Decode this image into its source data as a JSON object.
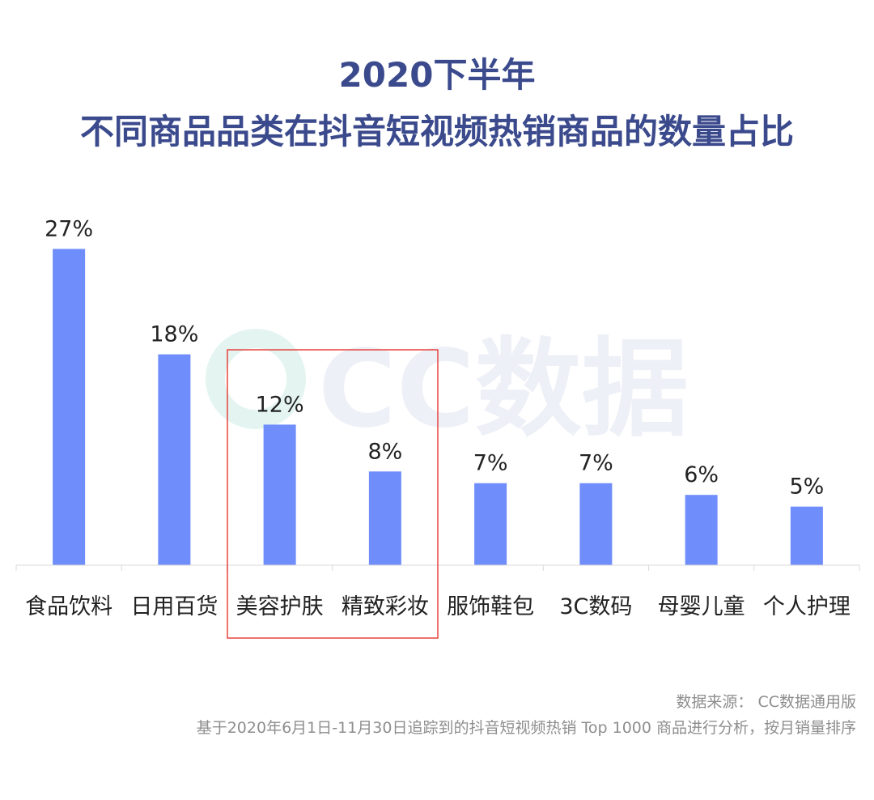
{
  "chart_data": {
    "type": "bar",
    "title": "2020下半年",
    "subtitle": "不同商品品类在抖音短视频热销商品的数量占比",
    "categories": [
      "食品饮料",
      "日用百货",
      "美容护肤",
      "精致彩妆",
      "服饰鞋包",
      "3C数码",
      "母婴儿童",
      "个人护理"
    ],
    "values": [
      27,
      18,
      12,
      8,
      7,
      7,
      6,
      5
    ],
    "data_labels": [
      "27%",
      "18%",
      "12%",
      "8%",
      "7%",
      "7%",
      "6%",
      "5%"
    ],
    "unit": "%",
    "ylim": [
      0,
      30
    ],
    "grid": false,
    "bar_color": "#6f8dfb",
    "highlight_categories": [
      "美容护肤",
      "精致彩妆"
    ],
    "highlight_color": "#e8433f"
  },
  "watermark": "CC数据",
  "source_note": "数据来源： CC数据通用版",
  "method_note": "基于2020年6月1日-11月30日追踪到的抖音短视频热销 Top 1000 商品进行分析，按月销量排序",
  "colors": {
    "title": "#3b4a8c",
    "text": "#222222",
    "note": "#8e8e8e"
  }
}
